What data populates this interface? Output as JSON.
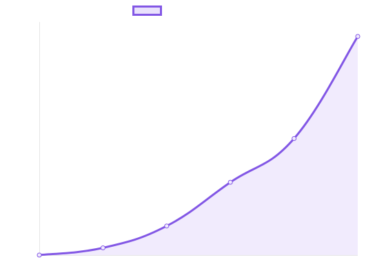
{
  "chart_data": {
    "type": "area",
    "x": [
      0,
      1,
      2,
      3,
      4,
      5
    ],
    "series": [
      {
        "values": [
          0,
          3.3,
          13.3,
          33.3,
          53.3,
          100
        ]
      }
    ],
    "ylim": [
      0,
      100
    ],
    "legend": "top",
    "grid": false,
    "colors": {
      "line": "#8257e5",
      "fill": "#f1ebfd",
      "axis": "#e6e6e6",
      "legend_fill": "#e9e1fc"
    }
  }
}
